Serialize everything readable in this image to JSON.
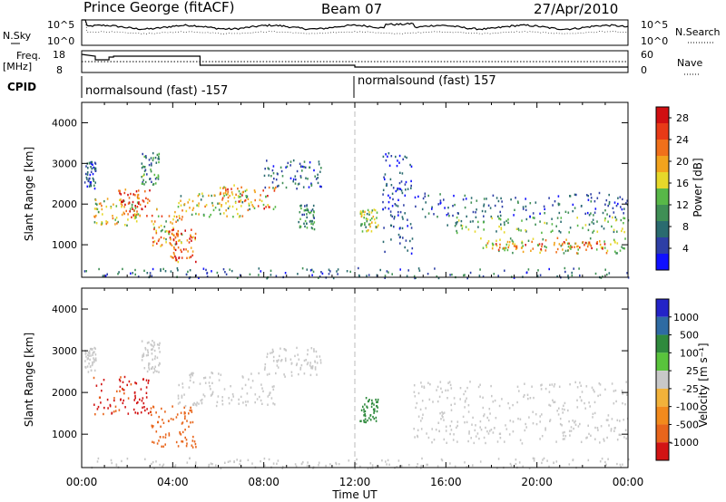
{
  "header": {
    "station": "Prince George (fitACF)",
    "beam": "Beam 07",
    "date": "27/Apr/2010"
  },
  "summary_panels": {
    "nsky_label": "N.Sky",
    "nsky_scale": [
      "10^5",
      "10^0"
    ],
    "nsearch_label": "N.Search",
    "nsearch_scale": [
      "10^5",
      "10^0"
    ],
    "freq_label": "Freq.",
    "freq_unit": "[MHz]",
    "freq_scale": [
      "18",
      "8"
    ],
    "nave_label": "Nave",
    "nave_scale": [
      "60",
      "0"
    ],
    "cpid_label": "CPID",
    "cpid_segments": [
      "normalsound (fast) -157",
      "normalsound (fast) 157"
    ]
  },
  "colors": {
    "power": [
      "#1010ff",
      "#2e3fa6",
      "#2a6b6f",
      "#3f8f55",
      "#58b848",
      "#e6d82a",
      "#f2a31d",
      "#f0701a",
      "#e83a17",
      "#d10f12"
    ],
    "velocity_neg": [
      "#d21414",
      "#e8651b",
      "#f28a1c",
      "#f2b23a"
    ],
    "velocity_pos": [
      "#c8c8c8",
      "#59c43c",
      "#2f8a3d",
      "#2e6ba3",
      "#2323c8"
    ],
    "ground": "#c0c0c0"
  },
  "chart_data": [
    {
      "type": "heatmap",
      "name": "power",
      "ylabel": "Slant Range [km]",
      "yticks": [
        "1000",
        "2000",
        "3000",
        "4000"
      ],
      "ylim": [
        200,
        4500
      ],
      "xlim": [
        0,
        24
      ],
      "colorbar_label": "Power [dB]",
      "colorbar_ticks": [
        "4",
        "8",
        "12",
        "16",
        "20",
        "24",
        "28"
      ],
      "colorbar_range": [
        0,
        30
      ],
      "regions": [
        {
          "t": [
            0.1,
            0.6
          ],
          "r": [
            2400,
            3100
          ],
          "v": 6
        },
        {
          "t": [
            0.5,
            2.5
          ],
          "r": [
            1500,
            2200
          ],
          "v": 16
        },
        {
          "t": [
            1.6,
            3.0
          ],
          "r": [
            1700,
            2400
          ],
          "v": 25
        },
        {
          "t": [
            2.6,
            3.4
          ],
          "r": [
            2500,
            3300
          ],
          "v": 10
        },
        {
          "t": [
            3.0,
            4.4
          ],
          "r": [
            900,
            1900
          ],
          "v": 18
        },
        {
          "t": [
            3.8,
            5.0
          ],
          "r": [
            600,
            1400
          ],
          "v": 26
        },
        {
          "t": [
            4.2,
            7.5
          ],
          "r": [
            1700,
            2300
          ],
          "v": 15
        },
        {
          "t": [
            6.0,
            8.5
          ],
          "r": [
            1900,
            2500
          ],
          "v": 20
        },
        {
          "t": [
            8.0,
            10.5
          ],
          "r": [
            2400,
            3100
          ],
          "v": 7
        },
        {
          "t": [
            9.5,
            10.2
          ],
          "r": [
            1400,
            2000
          ],
          "v": 9
        },
        {
          "t": [
            12.2,
            13.0
          ],
          "r": [
            1300,
            1900
          ],
          "v": 13
        },
        {
          "t": [
            13.2,
            14.5
          ],
          "r": [
            800,
            3300
          ],
          "v": 5
        },
        {
          "t": [
            14.5,
            24.0
          ],
          "r": [
            1700,
            2300
          ],
          "v": 6
        },
        {
          "t": [
            16.0,
            24.0
          ],
          "r": [
            1300,
            1700
          ],
          "v": 12
        },
        {
          "t": [
            17.5,
            24.0
          ],
          "r": [
            800,
            1200
          ],
          "v": 17
        },
        {
          "t": [
            18.0,
            23.0
          ],
          "r": [
            900,
            1100
          ],
          "v": 22
        },
        {
          "t": [
            0.0,
            24.0
          ],
          "r": [
            200,
            450
          ],
          "v": 7
        }
      ]
    },
    {
      "type": "heatmap",
      "name": "velocity",
      "ylabel": "Slant Range [km]",
      "yticks": [
        "1000",
        "2000",
        "3000",
        "4000"
      ],
      "ylim": [
        200,
        4500
      ],
      "xlim": [
        0,
        24
      ],
      "colorbar_label": "Velocity [m s⁻¹]",
      "colorbar_ticks": [
        "1000",
        "500",
        "100",
        "25",
        "-25",
        "-100",
        "-500",
        "-1000"
      ],
      "regions": [
        {
          "t": [
            0.1,
            0.6
          ],
          "r": [
            2500,
            3100
          ],
          "v": 0
        },
        {
          "t": [
            0.5,
            3.0
          ],
          "r": [
            1500,
            2400
          ],
          "v": -600
        },
        {
          "t": [
            2.6,
            3.4
          ],
          "r": [
            2500,
            3300
          ],
          "v": 0
        },
        {
          "t": [
            3.0,
            5.0
          ],
          "r": [
            700,
            1700
          ],
          "v": -300
        },
        {
          "t": [
            4.2,
            8.5
          ],
          "r": [
            1700,
            2500
          ],
          "v": 0
        },
        {
          "t": [
            8.0,
            10.5
          ],
          "r": [
            2400,
            3100
          ],
          "v": 0
        },
        {
          "t": [
            12.2,
            13.0
          ],
          "r": [
            1300,
            1900
          ],
          "v": 200
        },
        {
          "t": [
            14.5,
            24.0
          ],
          "r": [
            800,
            2300
          ],
          "v": 0
        },
        {
          "t": [
            0.0,
            24.0
          ],
          "r": [
            200,
            450
          ],
          "v": 0
        }
      ]
    }
  ],
  "xaxis": {
    "label": "Time UT",
    "ticks": [
      "00:00",
      "04:00",
      "08:00",
      "12:00",
      "16:00",
      "20:00",
      "00:00"
    ]
  }
}
